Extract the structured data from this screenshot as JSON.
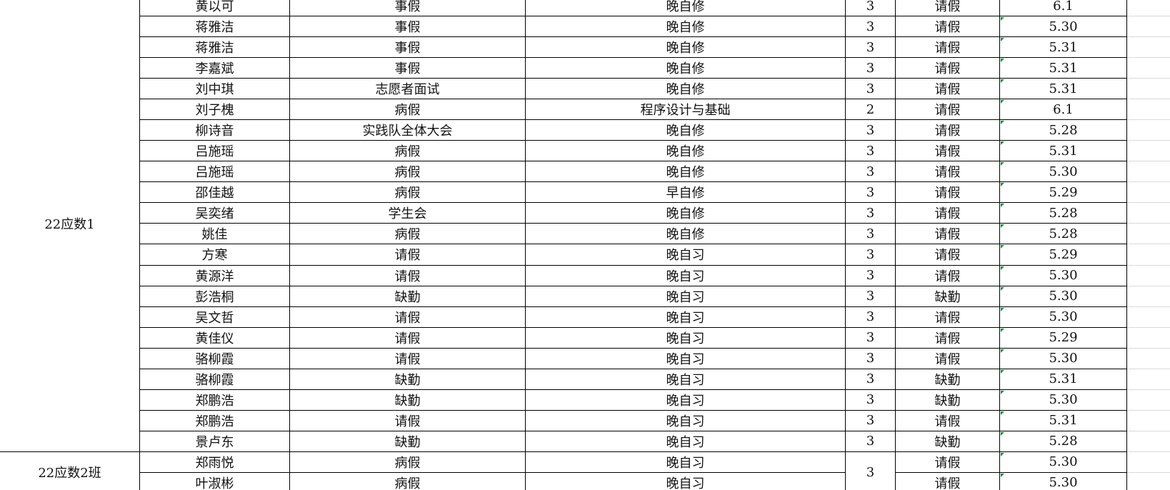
{
  "groups": [
    {
      "class": "22应数1",
      "rows": [
        [
          "黄以可",
          "事假",
          "晚自修",
          3,
          "请假",
          "6.1"
        ],
        [
          "蒋雅洁",
          "事假",
          "晚自修",
          3,
          "请假",
          "5.30"
        ],
        [
          "蒋雅洁",
          "事假",
          "晚自修",
          3,
          "请假",
          "5.31"
        ],
        [
          "李嘉斌",
          "事假",
          "晚自修",
          3,
          "请假",
          "5.31"
        ],
        [
          "刘中琪",
          "志愿者面试",
          "晚自修",
          3,
          "请假",
          "5.31"
        ],
        [
          "刘子槐",
          "病假",
          "程序设计与基础",
          2,
          "请假",
          "6.1"
        ],
        [
          "柳诗音",
          "实践队全体大会",
          "晚自修",
          3,
          "请假",
          "5.28"
        ],
        [
          "吕施瑶",
          "病假",
          "晚自修",
          3,
          "请假",
          "5.31"
        ],
        [
          "吕施瑶",
          "病假",
          "晚自修",
          3,
          "请假",
          "5.30"
        ],
        [
          "邵佳越",
          "病假",
          "早自修",
          3,
          "请假",
          "5.29"
        ],
        [
          "吴奕绪",
          "学生会",
          "晚自修",
          3,
          "请假",
          "5.28"
        ],
        [
          "姚佳",
          "病假",
          "晚自修",
          3,
          "请假",
          "5.28"
        ],
        [
          "方寒",
          "请假",
          "晚自习",
          3,
          "请假",
          "5.29"
        ],
        [
          "黄源洋",
          "请假",
          "晚自习",
          3,
          "请假",
          "5.30"
        ],
        [
          "彭浩桐",
          "缺勤",
          "晚自习",
          3,
          "缺勤",
          "5.30"
        ],
        [
          "吴文哲",
          "请假",
          "晚自习",
          3,
          "请假",
          "5.30"
        ],
        [
          "黄佳仪",
          "请假",
          "晚自习",
          3,
          "请假",
          "5.29"
        ],
        [
          "骆柳霞",
          "请假",
          "晚自习",
          3,
          "请假",
          "5.30"
        ],
        [
          "骆柳霞",
          "缺勤",
          "晚自习",
          3,
          "缺勤",
          "5.31"
        ],
        [
          "郑鹏浩",
          "缺勤",
          "晚自习",
          3,
          "缺勤",
          "5.30"
        ],
        [
          "郑鹏浩",
          "请假",
          "晚自习",
          3,
          "请假",
          "5.31"
        ],
        [
          "景卢东",
          "缺勤",
          "晚自习",
          3,
          "缺勤",
          "5.28"
        ]
      ]
    },
    {
      "class": "22应数2班",
      "count": 3,
      "rows": [
        [
          "郑雨悦",
          "病假",
          "晚自习",
          "请假",
          "5.30"
        ],
        [
          "叶淑彬",
          "病假",
          "晚自习",
          "请假",
          "5.30"
        ]
      ]
    }
  ]
}
